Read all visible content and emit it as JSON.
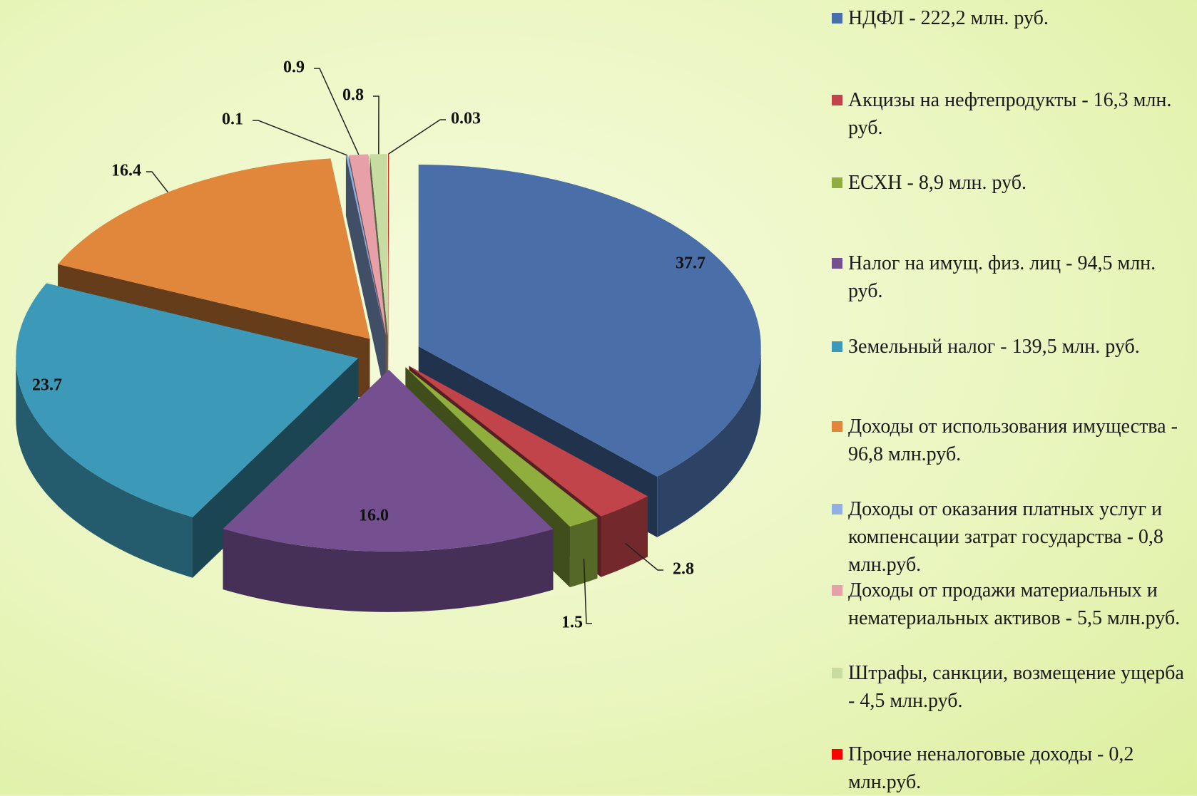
{
  "chart_data": {
    "type": "pie",
    "categories": [
      "НДФЛ - 222,2 млн. руб.",
      "Акцизы на нефтепродукты - 16,3 млн. руб.",
      "ЕСХН - 8,9 млн. руб.",
      "Налог на имущ. физ. лиц - 94,5 млн. руб.",
      "Земельный налог - 139,5 млн. руб.",
      "Доходы от использования имущества - 96,8 млн.руб.",
      "Доходы от оказания платных услуг и компенсации затрат государства - 0,8 млн.руб.",
      "Доходы от продажи материальных и нематериальных активов - 5,5 млн.руб.",
      "Штрафы, санкции, возмещение ущерба - 4,5 млн.руб.",
      "Прочие неналоговые доходы - 0,2 млн.руб."
    ],
    "values": [
      37.7,
      2.8,
      1.5,
      16.0,
      23.7,
      16.4,
      0.1,
      0.9,
      0.8,
      0.03
    ],
    "value_labels": [
      "37.7",
      "2.8",
      "1.5",
      "16.0",
      "23.7",
      "16.4",
      "0.1",
      "0.9",
      "0.8",
      "0.03"
    ],
    "colors": [
      "#4a6fa8",
      "#c0444a",
      "#8fae3e",
      "#755091",
      "#3c9ab8",
      "#e0873c",
      "#8fb0e0",
      "#e8a0a8",
      "#c6dca0",
      "#ff0000"
    ],
    "legend": "right"
  }
}
